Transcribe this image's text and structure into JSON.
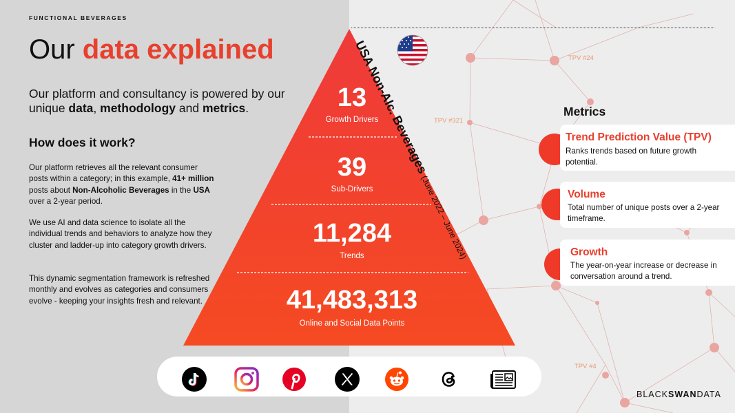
{
  "header": {
    "eyebrow": "FUNCTIONAL BEVERAGES",
    "title_plain": "Our ",
    "title_accent": "data explained"
  },
  "intro": {
    "pre": "Our platform and consultancy is powered by our unique ",
    "b1": "data",
    "sep1": ", ",
    "b2": "methodology",
    "sep2": " and ",
    "b3": "metrics",
    "end": "."
  },
  "how": {
    "heading": "How does it work?",
    "p1": {
      "a": "Our platform retrieves all the relevant consumer posts within a category; in this example, ",
      "b": "41+ million",
      "c": " posts about ",
      "d": "Non-Alcoholic Beverages",
      "e": " in the ",
      "f": "USA",
      "g": " over a 2-year period."
    },
    "p2": "We use AI and data science to isolate all the individual trends and behaviors to analyze how they cluster and ladder-up into category growth drivers.",
    "p3": "This dynamic segmentation framework is refreshed monthly and evolves as categories and consumers evolve - keeping your insights fresh and relevant."
  },
  "pyramid": {
    "tiers": [
      {
        "value": "13",
        "label": "Growth Drivers"
      },
      {
        "value": "39",
        "label": "Sub-Drivers"
      },
      {
        "value": "11,284",
        "label": "Trends"
      },
      {
        "value": "41,483,313",
        "label": "Online and Social Data Points"
      }
    ],
    "side_title": "USA Non-Alc. Beverages",
    "side_period": "(June 2022 – June 2024)",
    "flag": "usa-flag-icon"
  },
  "tpv_labels": {
    "a": "TPV #24",
    "b": "TPV #321",
    "c": "TPV #4"
  },
  "metrics": {
    "heading": "Metrics",
    "items": [
      {
        "title": "Trend Prediction Value (TPV)",
        "desc": "Ranks trends based on future growth potential."
      },
      {
        "title": "Volume",
        "desc": "Total number of unique posts over a 2-year timeframe."
      },
      {
        "title": "Growth",
        "desc": "The year-on-year increase or decrease in conversation around a trend."
      }
    ]
  },
  "sources": [
    "tiktok-icon",
    "instagram-icon",
    "pinterest-icon",
    "x-icon",
    "reddit-icon",
    "threads-icon",
    "news-icon"
  ],
  "brand": {
    "black": "BLACK",
    "swan": "SWAN",
    "data": "DATA"
  },
  "colors": {
    "accent": "#e8402e",
    "pyramid_top": "#ef3a3a",
    "pyramid_bottom": "#f54a22",
    "node": "#e9a5a0"
  }
}
